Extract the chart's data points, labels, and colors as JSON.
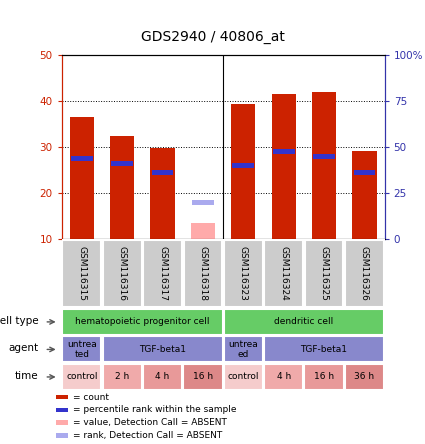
{
  "title": "GDS2940 / 40806_at",
  "samples": [
    "GSM116315",
    "GSM116316",
    "GSM116317",
    "GSM116318",
    "GSM116323",
    "GSM116324",
    "GSM116325",
    "GSM116326"
  ],
  "bar_heights_red": [
    36.5,
    32.5,
    29.8,
    0,
    39.3,
    41.5,
    42.0,
    29.2
  ],
  "bar_heights_pink": [
    0,
    0,
    0,
    13.5,
    0,
    0,
    0,
    0
  ],
  "rank_blue": [
    27.5,
    26.5,
    24.5,
    0,
    26.0,
    29.0,
    28.0,
    24.5
  ],
  "rank_blue_absent": [
    0,
    0,
    0,
    18.0,
    0,
    0,
    0,
    0
  ],
  "ylim_left": [
    10,
    50
  ],
  "ylim_right": [
    0,
    100
  ],
  "yticks_left": [
    10,
    20,
    30,
    40,
    50
  ],
  "yticks_right": [
    0,
    25,
    50,
    75,
    100
  ],
  "ytick_labels_right": [
    "0",
    "25",
    "50",
    "75",
    "100%"
  ],
  "bar_color_red": "#cc2200",
  "bar_color_pink": "#ffaaaa",
  "bar_color_blue": "#3333cc",
  "bar_color_blue_absent": "#aaaaee",
  "bg_color": "#ffffff",
  "cell_type_groups": [
    {
      "label": "hematopoietic progenitor cell",
      "start": 0,
      "end": 3,
      "color": "#66cc66"
    },
    {
      "label": "dendritic cell",
      "start": 4,
      "end": 7,
      "color": "#66cc66"
    }
  ],
  "agent_groups": [
    {
      "label": "untrea\nted",
      "start": 0,
      "end": 0,
      "color": "#8888cc"
    },
    {
      "label": "TGF-beta1",
      "start": 1,
      "end": 3,
      "color": "#8888cc"
    },
    {
      "label": "untrea\ned",
      "start": 4,
      "end": 4,
      "color": "#8888cc"
    },
    {
      "label": "TGF-beta1",
      "start": 5,
      "end": 7,
      "color": "#8888cc"
    }
  ],
  "time_groups": [
    {
      "label": "control",
      "start": 0,
      "end": 0,
      "color": "#f5cccc"
    },
    {
      "label": "2 h",
      "start": 1,
      "end": 1,
      "color": "#f0aaaa"
    },
    {
      "label": "4 h",
      "start": 2,
      "end": 2,
      "color": "#e89999"
    },
    {
      "label": "16 h",
      "start": 3,
      "end": 3,
      "color": "#dd8888"
    },
    {
      "label": "control",
      "start": 4,
      "end": 4,
      "color": "#f5cccc"
    },
    {
      "label": "4 h",
      "start": 5,
      "end": 5,
      "color": "#f0aaaa"
    },
    {
      "label": "16 h",
      "start": 6,
      "end": 6,
      "color": "#e89999"
    },
    {
      "label": "36 h",
      "start": 7,
      "end": 7,
      "color": "#dd8888"
    }
  ],
  "legend_items": [
    {
      "color": "#cc2200",
      "label": "count"
    },
    {
      "color": "#3333cc",
      "label": "percentile rank within the sample"
    },
    {
      "color": "#ffaaaa",
      "label": "value, Detection Call = ABSENT"
    },
    {
      "color": "#aaaaee",
      "label": "rank, Detection Call = ABSENT"
    }
  ],
  "row_labels": [
    "cell type",
    "agent",
    "time"
  ],
  "left_axis_color": "#cc2200",
  "right_axis_color": "#3333aa",
  "sample_box_color": "#cccccc",
  "gap_color": "#ffffff"
}
